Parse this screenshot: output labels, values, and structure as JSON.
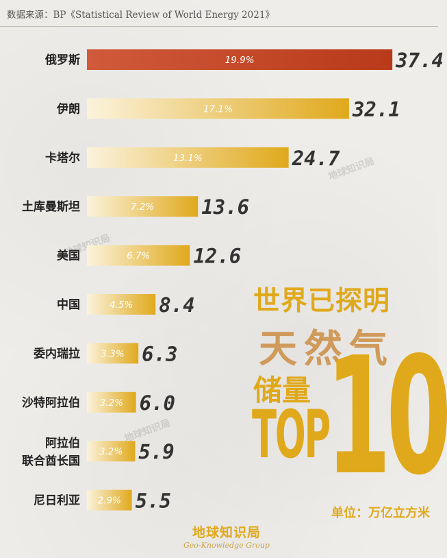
{
  "source": "数据来源：BP《Statistical Review of World Energy 2021》",
  "title": {
    "line1": "世界已探明",
    "line2": "天然气",
    "line3": "储量",
    "line4": "TOP",
    "line5": "10"
  },
  "unit": "单位：万亿立方米",
  "watermark": "地球知识局",
  "logo": {
    "cn": "地球知识局",
    "en": "Geo-Knowledge Group"
  },
  "colors": {
    "top_bar": "#b83a1a",
    "bar": "#e0a91c",
    "bar_light": "#fbf3dc"
  },
  "chart_data": {
    "type": "bar",
    "orientation": "horizontal",
    "categories": [
      "俄罗斯",
      "伊朗",
      "卡塔尔",
      "土库曼斯坦",
      "美国",
      "中国",
      "委内瑞拉",
      "沙特阿拉伯",
      "阿拉伯联合酋长国",
      "尼日利亚"
    ],
    "category_lines": [
      [
        "俄罗斯"
      ],
      [
        "伊朗"
      ],
      [
        "卡塔尔"
      ],
      [
        "土库曼斯坦"
      ],
      [
        "美国"
      ],
      [
        "中国"
      ],
      [
        "委内瑞拉"
      ],
      [
        "沙特阿拉伯"
      ],
      [
        "阿拉伯",
        "联合酋长国"
      ],
      [
        "尼日利亚"
      ]
    ],
    "values": [
      37.4,
      32.1,
      24.7,
      13.6,
      12.6,
      8.4,
      6.3,
      6.0,
      5.9,
      5.5
    ],
    "value_labels": [
      "37.4",
      "32.1",
      "24.7",
      "13.6",
      "12.6",
      "8.4",
      "6.3",
      "6.0",
      "5.9",
      "5.5"
    ],
    "share_labels": [
      "19.9%",
      "17.1%",
      "13.1%",
      "7.2%",
      "6.7%",
      "4.5%",
      "3.3%",
      "3.2%",
      "3.2%",
      "2.9%"
    ],
    "title": "",
    "xlabel": "",
    "ylabel": ""
  }
}
